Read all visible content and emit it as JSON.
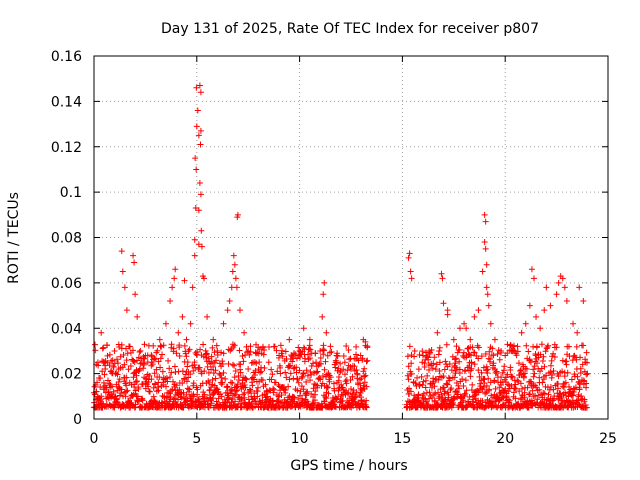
{
  "chart_data": {
    "type": "scatter",
    "title": "Day 131 of 2025, Rate Of TEC Index for receiver p807",
    "xlabel": "GPS time / hours",
    "ylabel": "ROTI / TECUs",
    "xlim": [
      0,
      25
    ],
    "ylim": [
      0,
      0.16
    ],
    "x_ticks": [
      0,
      5,
      10,
      15,
      20,
      25
    ],
    "x_tick_labels": [
      "0",
      "5",
      "10",
      "15",
      "20",
      "25"
    ],
    "y_ticks": [
      0,
      0.02,
      0.04,
      0.06,
      0.08,
      0.1,
      0.12,
      0.14,
      0.16
    ],
    "y_tick_labels": [
      "0",
      "0.02",
      "0.04",
      "0.06",
      "0.08",
      "0.1",
      "0.12",
      "0.14",
      "0.16"
    ],
    "grid": true,
    "marker": "plus",
    "marker_color": "#ff0000",
    "data_gap_hours": [
      13.3,
      15.2
    ],
    "series": [
      {
        "name": "ROTI",
        "points": [
          [
            0.1,
            0.012
          ],
          [
            0.3,
            0.018
          ],
          [
            0.35,
            0.038
          ],
          [
            0.5,
            0.025
          ],
          [
            0.8,
            0.015
          ],
          [
            1.0,
            0.03
          ],
          [
            1.2,
            0.022
          ],
          [
            1.35,
            0.074
          ],
          [
            1.4,
            0.065
          ],
          [
            1.5,
            0.058
          ],
          [
            1.6,
            0.048
          ],
          [
            1.9,
            0.072
          ],
          [
            1.95,
            0.069
          ],
          [
            2.0,
            0.055
          ],
          [
            2.1,
            0.045
          ],
          [
            2.5,
            0.028
          ],
          [
            2.8,
            0.025
          ],
          [
            3.2,
            0.035
          ],
          [
            3.5,
            0.042
          ],
          [
            3.7,
            0.052
          ],
          [
            3.8,
            0.058
          ],
          [
            3.9,
            0.062
          ],
          [
            3.95,
            0.066
          ],
          [
            4.1,
            0.038
          ],
          [
            4.3,
            0.045
          ],
          [
            4.4,
            0.061
          ],
          [
            4.5,
            0.035
          ],
          [
            4.6,
            0.03
          ],
          [
            4.7,
            0.042
          ],
          [
            4.8,
            0.058
          ],
          [
            4.9,
            0.072
          ],
          [
            4.9,
            0.079
          ],
          [
            4.95,
            0.093
          ],
          [
            4.92,
            0.115
          ],
          [
            4.97,
            0.11
          ],
          [
            5.0,
            0.129
          ],
          [
            5.05,
            0.136
          ],
          [
            4.98,
            0.146
          ],
          [
            5.1,
            0.125
          ],
          [
            5.15,
            0.147
          ],
          [
            5.2,
            0.144
          ],
          [
            5.18,
            0.121
          ],
          [
            5.2,
            0.127
          ],
          [
            5.15,
            0.104
          ],
          [
            5.2,
            0.099
          ],
          [
            5.1,
            0.092
          ],
          [
            5.22,
            0.083
          ],
          [
            5.1,
            0.077
          ],
          [
            5.25,
            0.076
          ],
          [
            5.3,
            0.063
          ],
          [
            5.35,
            0.062
          ],
          [
            5.5,
            0.045
          ],
          [
            5.8,
            0.035
          ],
          [
            6.0,
            0.03
          ],
          [
            6.3,
            0.042
          ],
          [
            6.5,
            0.048
          ],
          [
            6.6,
            0.052
          ],
          [
            6.7,
            0.058
          ],
          [
            6.75,
            0.065
          ],
          [
            6.8,
            0.072
          ],
          [
            6.85,
            0.068
          ],
          [
            6.9,
            0.062
          ],
          [
            6.95,
            0.058
          ],
          [
            6.97,
            0.089
          ],
          [
            7.0,
            0.09
          ],
          [
            7.1,
            0.048
          ],
          [
            7.3,
            0.038
          ],
          [
            7.5,
            0.03
          ],
          [
            8.0,
            0.022
          ],
          [
            8.5,
            0.025
          ],
          [
            9.0,
            0.028
          ],
          [
            9.5,
            0.035
          ],
          [
            10.0,
            0.03
          ],
          [
            10.2,
            0.04
          ],
          [
            10.5,
            0.035
          ],
          [
            10.8,
            0.025
          ],
          [
            11.0,
            0.03
          ],
          [
            11.1,
            0.045
          ],
          [
            11.2,
            0.06
          ],
          [
            11.15,
            0.055
          ],
          [
            11.3,
            0.038
          ],
          [
            11.5,
            0.032
          ],
          [
            11.8,
            0.028
          ],
          [
            12.2,
            0.025
          ],
          [
            12.5,
            0.022
          ],
          [
            12.8,
            0.02
          ],
          [
            13.0,
            0.018
          ],
          [
            13.1,
            0.035
          ],
          [
            13.2,
            0.034
          ],
          [
            15.3,
            0.071
          ],
          [
            15.35,
            0.073
          ],
          [
            15.4,
            0.065
          ],
          [
            15.45,
            0.062
          ],
          [
            15.6,
            0.03
          ],
          [
            15.8,
            0.022
          ],
          [
            16.0,
            0.028
          ],
          [
            16.3,
            0.03
          ],
          [
            16.7,
            0.038
          ],
          [
            16.9,
            0.064
          ],
          [
            16.95,
            0.062
          ],
          [
            17.0,
            0.051
          ],
          [
            17.2,
            0.048
          ],
          [
            17.2,
            0.046
          ],
          [
            17.5,
            0.035
          ],
          [
            17.8,
            0.04
          ],
          [
            18.0,
            0.042
          ],
          [
            18.1,
            0.04
          ],
          [
            18.3,
            0.035
          ],
          [
            18.5,
            0.045
          ],
          [
            18.7,
            0.048
          ],
          [
            18.9,
            0.065
          ],
          [
            19.0,
            0.09
          ],
          [
            19.05,
            0.087
          ],
          [
            19.0,
            0.078
          ],
          [
            19.05,
            0.075
          ],
          [
            19.1,
            0.068
          ],
          [
            19.1,
            0.058
          ],
          [
            19.15,
            0.055
          ],
          [
            19.2,
            0.05
          ],
          [
            19.3,
            0.042
          ],
          [
            19.5,
            0.035
          ],
          [
            19.8,
            0.03
          ],
          [
            20.0,
            0.028
          ],
          [
            20.3,
            0.03
          ],
          [
            20.6,
            0.032
          ],
          [
            20.8,
            0.038
          ],
          [
            21.0,
            0.042
          ],
          [
            21.2,
            0.05
          ],
          [
            21.3,
            0.066
          ],
          [
            21.4,
            0.062
          ],
          [
            21.5,
            0.045
          ],
          [
            21.7,
            0.04
          ],
          [
            21.9,
            0.048
          ],
          [
            22.0,
            0.058
          ],
          [
            22.2,
            0.05
          ],
          [
            22.5,
            0.055
          ],
          [
            22.6,
            0.06
          ],
          [
            22.7,
            0.063
          ],
          [
            22.8,
            0.062
          ],
          [
            22.9,
            0.058
          ],
          [
            23.0,
            0.052
          ],
          [
            23.3,
            0.042
          ],
          [
            23.5,
            0.038
          ],
          [
            23.6,
            0.058
          ],
          [
            23.8,
            0.052
          ],
          [
            23.9,
            0.025
          ],
          [
            24.0,
            0.02
          ]
        ]
      }
    ]
  }
}
